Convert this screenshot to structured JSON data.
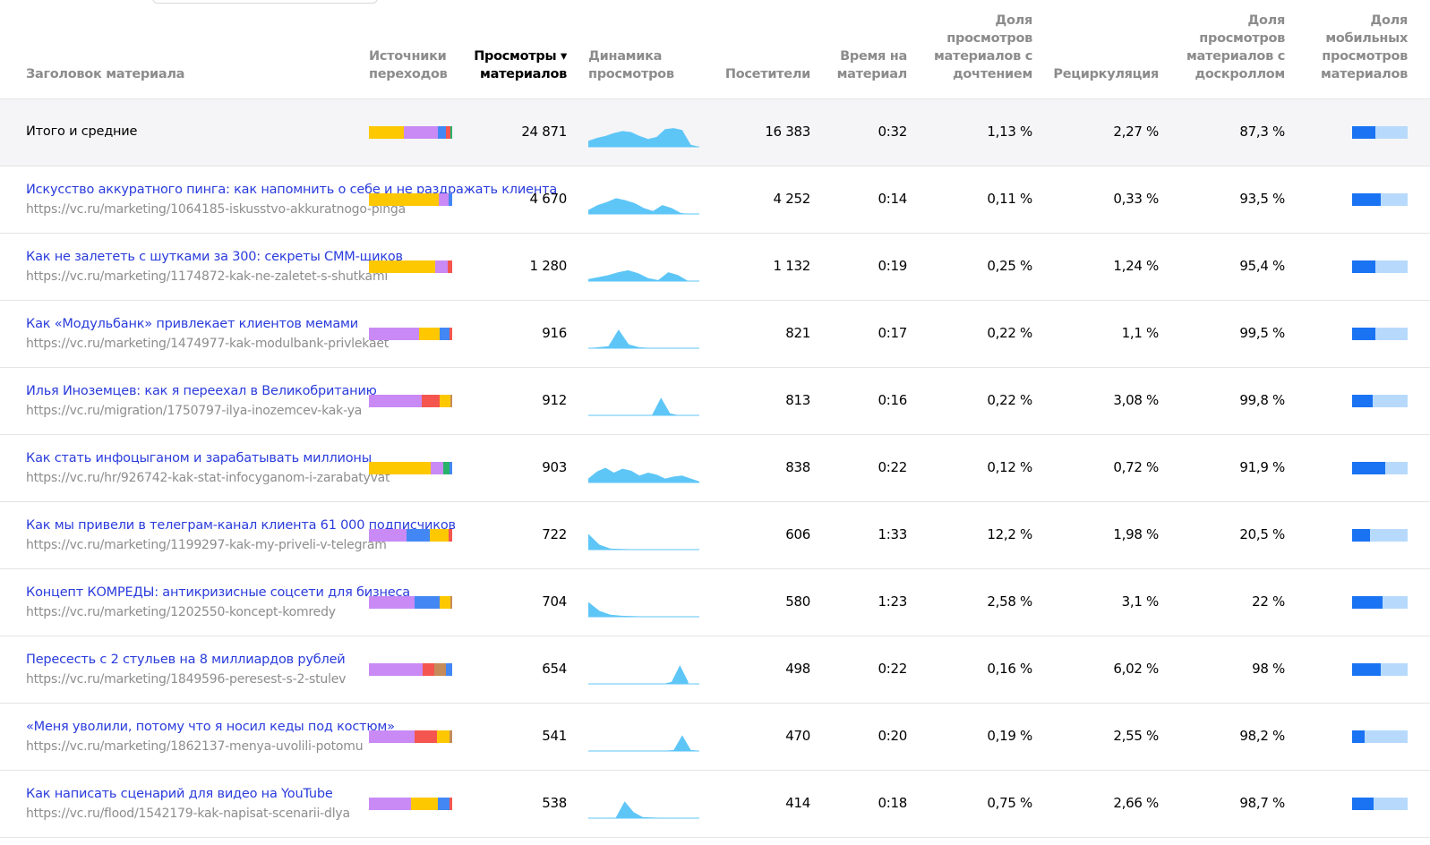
{
  "columns": {
    "title": "Заголовок материала",
    "sources": [
      "Источники",
      "переходов"
    ],
    "views": [
      "Просмотры ▾",
      "материалов"
    ],
    "dynamics": [
      "Динамика",
      "просмотров"
    ],
    "visitors": "Посетители",
    "time": [
      "Время на",
      "материал"
    ],
    "read_share": [
      "Доля",
      "просмотров",
      "материалов с",
      "дочтением"
    ],
    "recirc": "Рециркуляция",
    "scroll_share": [
      "Доля",
      "просмотров",
      "материалов с",
      "доскроллом"
    ],
    "mobile_share": [
      "Доля",
      "мобильных",
      "просмотров",
      "материалов"
    ]
  },
  "colors": {
    "yellow": "#fec800",
    "purple": "#c98af5",
    "blue": "#4387f5",
    "red": "#f4564f",
    "green": "#29b36a",
    "brown": "#c58b5a",
    "spark": "#5ec6f7",
    "mobile_fill": "#1a73f2",
    "mobile_bg": "#b7dafc"
  },
  "rows": [
    {
      "title": "Итого и средние",
      "url": "",
      "views": "24 871",
      "visitors": "16 383",
      "time": "0:32",
      "read_share": "1,13 %",
      "recirc": "2,27 %",
      "scroll_share": "87,3 %",
      "mobile_share": 0.42,
      "sources": [
        [
          "yellow",
          0.42
        ],
        [
          "purple",
          0.41
        ],
        [
          "blue",
          0.09
        ],
        [
          "red",
          0.06
        ],
        [
          "green",
          0.02
        ]
      ],
      "spark": [
        0.3,
        0.45,
        0.55,
        0.7,
        0.8,
        0.75,
        0.55,
        0.4,
        0.5,
        0.9,
        0.95,
        0.85,
        0.1,
        0.0
      ],
      "spark_span": 1.0
    },
    {
      "title": "Искусство аккуратного пинга: как напомнить о себе и не раздражать клиента",
      "url": "https://vc.ru/marketing/1064185-iskusstvo-akkuratnogo-pinga",
      "views": "4 670",
      "visitors": "4 252",
      "time": "0:14",
      "read_share": "0,11 %",
      "recirc": "0,33 %",
      "scroll_share": "93,5 %",
      "mobile_share": 0.52,
      "sources": [
        [
          "yellow",
          0.84
        ],
        [
          "purple",
          0.12
        ],
        [
          "blue",
          0.04
        ]
      ],
      "spark": [
        0.2,
        0.45,
        0.6,
        0.8,
        0.7,
        0.55,
        0.3,
        0.15,
        0.45,
        0.3,
        0.05,
        0.0,
        0.0
      ],
      "spark_span": 1.0
    },
    {
      "title": "Как не залететь с шутками за 300: секреты СММ-щиков",
      "url": "https://vc.ru/marketing/1174872-kak-ne-zaletet-s-shutkami",
      "views": "1 280",
      "visitors": "1 132",
      "time": "0:19",
      "read_share": "0,25 %",
      "recirc": "1,24 %",
      "scroll_share": "95,4 %",
      "mobile_share": 0.42,
      "sources": [
        [
          "yellow",
          0.8
        ],
        [
          "purple",
          0.15
        ],
        [
          "red",
          0.05
        ]
      ],
      "spark": [
        0.1,
        0.2,
        0.3,
        0.45,
        0.55,
        0.4,
        0.15,
        0.05,
        0.45,
        0.3,
        0.0
      ],
      "spark_span": 0.9
    },
    {
      "title": "Как «Модульбанк» привлекает клиентов мемами",
      "url": "https://vc.ru/marketing/1474977-kak-modulbank-privlekaet",
      "views": "916",
      "visitors": "821",
      "time": "0:17",
      "read_share": "0,22 %",
      "recirc": "1,1 %",
      "scroll_share": "99,5 %",
      "mobile_share": 0.42,
      "sources": [
        [
          "purple",
          0.6
        ],
        [
          "yellow",
          0.25
        ],
        [
          "blue",
          0.12
        ],
        [
          "red",
          0.03
        ]
      ],
      "spark": [
        0.0,
        0.05,
        0.1,
        0.95,
        0.2,
        0.05,
        0.02,
        0.02,
        0.01,
        0.0,
        0.0,
        0.0
      ],
      "spark_span": 1.0
    },
    {
      "title": "Илья Иноземцев: как я переехал в Великобританию",
      "url": "https://vc.ru/migration/1750797-ilya-inozemcev-kak-ya",
      "views": "912",
      "visitors": "813",
      "time": "0:16",
      "read_share": "0,22 %",
      "recirc": "3,08 %",
      "scroll_share": "99,8 %",
      "mobile_share": 0.37,
      "sources": [
        [
          "purple",
          0.63
        ],
        [
          "red",
          0.22
        ],
        [
          "yellow",
          0.13
        ],
        [
          "brown",
          0.02
        ]
      ],
      "spark": [
        0.0,
        0.0,
        0.0,
        0.0,
        0.0,
        0.0,
        0.0,
        0.0,
        0.9,
        0.1,
        0.0,
        0.0
      ],
      "spark_span": 0.9
    },
    {
      "title": "Как стать инфоцыганом и зарабатывать миллионы",
      "url": "https://vc.ru/hr/926742-kak-stat-infocyganom-i-zarabatyvat",
      "views": "903",
      "visitors": "838",
      "time": "0:22",
      "read_share": "0,12 %",
      "recirc": "0,72 %",
      "scroll_share": "91,9 %",
      "mobile_share": 0.6,
      "sources": [
        [
          "yellow",
          0.74
        ],
        [
          "purple",
          0.15
        ],
        [
          "green",
          0.08
        ],
        [
          "blue",
          0.03
        ]
      ],
      "spark": [
        0.2,
        0.55,
        0.75,
        0.5,
        0.7,
        0.6,
        0.35,
        0.5,
        0.4,
        0.2,
        0.3,
        0.35,
        0.2,
        0.05
      ],
      "spark_span": 1.0
    },
    {
      "title": "Как мы привели в телеграм-канал клиента 61 000 подписчиков",
      "url": "https://vc.ru/marketing/1199297-kak-my-priveli-v-telegram",
      "views": "722",
      "visitors": "606",
      "time": "1:33",
      "read_share": "12,2 %",
      "recirc": "1,98 %",
      "scroll_share": "20,5 %",
      "mobile_share": 0.33,
      "sources": [
        [
          "purple",
          0.45
        ],
        [
          "blue",
          0.28
        ],
        [
          "yellow",
          0.23
        ],
        [
          "red",
          0.04
        ]
      ],
      "spark": [
        0.8,
        0.25,
        0.05,
        0.03,
        0.02,
        0.02,
        0.01,
        0.01,
        0.01,
        0.0
      ],
      "spark_span": 0.9
    },
    {
      "title": "Концепт КОМРЕДЫ: антикризисные соцсети для бизнеса",
      "url": "https://vc.ru/marketing/1202550-koncept-komredy",
      "views": "704",
      "visitors": "580",
      "time": "1:23",
      "read_share": "2,58 %",
      "recirc": "3,1 %",
      "scroll_share": "22 %",
      "mobile_share": 0.55,
      "sources": [
        [
          "purple",
          0.55
        ],
        [
          "blue",
          0.3
        ],
        [
          "yellow",
          0.13
        ],
        [
          "brown",
          0.02
        ]
      ],
      "spark": [
        0.75,
        0.3,
        0.1,
        0.05,
        0.03,
        0.02,
        0.02,
        0.01,
        0.01,
        0.0,
        0.0
      ],
      "spark_span": 1.0
    },
    {
      "title": "Пересесть с 2 стульев на 8 миллиардов рублей",
      "url": "https://vc.ru/marketing/1849596-peresest-s-2-stulev",
      "views": "654",
      "visitors": "498",
      "time": "0:22",
      "read_share": "0,16 %",
      "recirc": "6,02 %",
      "scroll_share": "98 %",
      "mobile_share": 0.52,
      "sources": [
        [
          "purple",
          0.65
        ],
        [
          "red",
          0.13
        ],
        [
          "brown",
          0.15
        ],
        [
          "blue",
          0.07
        ]
      ],
      "spark": [
        0.0,
        0.0,
        0.0,
        0.0,
        0.0,
        0.0,
        0.0,
        0.0,
        0.0,
        0.0,
        0.1,
        0.95,
        0.1
      ],
      "spark_span": 0.9
    },
    {
      "title": "«Меня уволили, потому что я носил кеды под костюм»",
      "url": "https://vc.ru/marketing/1862137-menya-uvolili-potomu",
      "views": "541",
      "visitors": "470",
      "time": "0:20",
      "read_share": "0,19 %",
      "recirc": "2,55 %",
      "scroll_share": "98,2 %",
      "mobile_share": 0.23,
      "sources": [
        [
          "purple",
          0.55
        ],
        [
          "red",
          0.27
        ],
        [
          "yellow",
          0.15
        ],
        [
          "brown",
          0.03
        ]
      ],
      "spark": [
        0.02,
        0.02,
        0.02,
        0.02,
        0.02,
        0.02,
        0.02,
        0.02,
        0.02,
        0.02,
        0.05,
        0.8,
        0.05,
        0.02
      ],
      "spark_span": 1.0
    },
    {
      "title": "Как написать сценарий для видео на YouTube",
      "url": "https://vc.ru/flood/1542179-kak-napisat-scenarii-dlya",
      "views": "538",
      "visitors": "414",
      "time": "0:18",
      "read_share": "0,75 %",
      "recirc": "2,66 %",
      "scroll_share": "98,7 %",
      "mobile_share": 0.38,
      "sources": [
        [
          "purple",
          0.5
        ],
        [
          "yellow",
          0.33
        ],
        [
          "blue",
          0.14
        ],
        [
          "red",
          0.03
        ]
      ],
      "spark": [
        0.0,
        0.0,
        0.0,
        0.0,
        0.85,
        0.3,
        0.05,
        0.03,
        0.02,
        0.02,
        0.01,
        0.0
      ],
      "spark_span": 0.9
    }
  ]
}
